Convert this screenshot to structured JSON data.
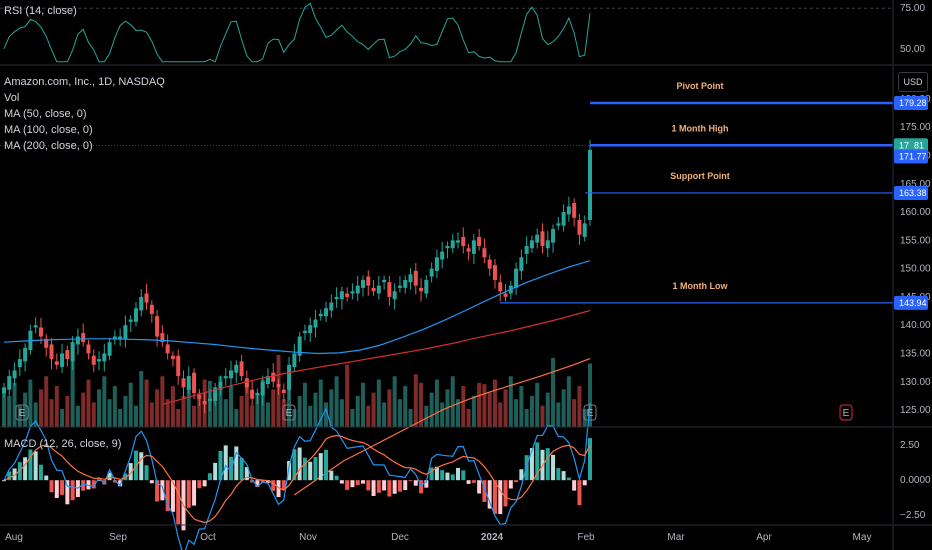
{
  "rsi": {
    "legend": "RSI (14, close)",
    "ticks": [
      75.0,
      50.0
    ],
    "tick_labels": [
      "75.00",
      "50.00"
    ]
  },
  "main": {
    "title": "Amazon.com, Inc., 1D, NASDAQ",
    "vol_label": "Vol",
    "ma_labels": [
      "MA (50, close, 0)",
      "MA (100, close, 0)",
      "MA (200, close, 0)"
    ],
    "currency": "USD"
  },
  "macd": {
    "legend": "MACD (12, 26, close, 9)",
    "tick_labels": [
      "2.50",
      "0.0000",
      "−2.50"
    ]
  },
  "xaxis": {
    "labels": [
      "Aug",
      "Sep",
      "Oct",
      "Nov",
      "Dec",
      "2024",
      "Feb",
      "Mar",
      "Apr",
      "May"
    ]
  },
  "annotations": [
    {
      "text": "Pivot Point",
      "value": 179.28
    },
    {
      "text": "1 Month High",
      "value": 171.81
    },
    {
      "text": "Support Point",
      "value": 163.38
    },
    {
      "text": "1 Month Low",
      "value": 143.94
    }
  ],
  "price_tags": [
    {
      "text": "179.28",
      "value": 179.28,
      "color": "#2962ff"
    },
    {
      "text": "17  81",
      "value": 171.81,
      "color": "#26a69a"
    },
    {
      "text": "171.77",
      "value": 171.77,
      "color": "#2962ff"
    },
    {
      "text": "163.38",
      "value": 163.38,
      "color": "#2962ff"
    },
    {
      "text": "143.94",
      "value": 143.94,
      "color": "#2962ff"
    }
  ],
  "earnings_markers": [
    "E",
    "E",
    "E",
    "E"
  ],
  "colors": {
    "up": "#26a69a",
    "down": "#ef5350",
    "ma50": "#2196f3",
    "ma100": "#d32f2f",
    "ma200": "#ff7043",
    "line": "#2962ff",
    "macd": "#2196f3",
    "signal": "#ff7043",
    "rsi": "#26a69a"
  },
  "chart_data": {
    "type": "candlestick",
    "title": "Amazon.com, Inc., 1D, NASDAQ",
    "yaxis_ticks": [
      125,
      130,
      135,
      140,
      145,
      150,
      155,
      160,
      165,
      170,
      175,
      180
    ],
    "ylim": [
      122,
      186
    ],
    "x_months": [
      "Aug",
      "Sep",
      "Oct",
      "Nov",
      "Dec",
      "2024",
      "Feb",
      "Mar",
      "Apr",
      "May"
    ],
    "closes": [
      129,
      131,
      132,
      134,
      136,
      139,
      140,
      138,
      136,
      134,
      133,
      135,
      134,
      137,
      138,
      137,
      135,
      133,
      134,
      135,
      137,
      138,
      138,
      140,
      141,
      143,
      145,
      144,
      142,
      138,
      137,
      135,
      134,
      131,
      129,
      131,
      128,
      127,
      126,
      127,
      129,
      130,
      131,
      132,
      133,
      131,
      129,
      127,
      128,
      130,
      131,
      130,
      129,
      128,
      133,
      135,
      138,
      139,
      140,
      141,
      142,
      143,
      144,
      145,
      146,
      145,
      146,
      147,
      148,
      147,
      146,
      147,
      148,
      145,
      146,
      147,
      148,
      149,
      147,
      146,
      148,
      150,
      152,
      153,
      154,
      155,
      155,
      154,
      153,
      155,
      154,
      152,
      150,
      148,
      146,
      145,
      147,
      150,
      152,
      154,
      155,
      156,
      154,
      155,
      157,
      158,
      160,
      161,
      159,
      156,
      158,
      171
    ],
    "ma50": [
      137,
      137.2,
      137.4,
      137.5,
      137.6,
      137.6,
      137.5,
      137.4,
      137.2,
      136.9,
      136.6,
      136.2,
      135.8,
      135.5,
      135.2,
      135,
      135.1,
      135.6,
      136.5,
      137.8,
      139.2,
      140.8,
      142.5,
      144.3,
      146,
      147.6,
      149,
      150.3,
      151.4
    ],
    "ma100": [
      126,
      126.8,
      127.6,
      128.4,
      129.2,
      129.9,
      130.6,
      131.2,
      131.8,
      132.3,
      132.8,
      133.3,
      133.8,
      134.3,
      134.8,
      135.3,
      135.8,
      136.4,
      137,
      137.7,
      138.3,
      138.9,
      139.6,
      140.3,
      141,
      141.8,
      142.6
    ],
    "ma200": [
      110,
      112,
      114,
      116,
      117.5,
      119,
      120.5,
      122,
      123.5,
      125,
      126.2,
      127.3,
      128.3,
      129.2,
      130.1,
      131,
      132,
      133,
      134.1
    ],
    "volume_scale": "relative",
    "levels": [
      {
        "name": "Pivot Point",
        "value": 179.28
      },
      {
        "name": "1 Month High",
        "value": 171.81
      },
      {
        "name": "Support Point",
        "value": 163.38
      },
      {
        "name": "1 Month Low",
        "value": 143.94
      }
    ],
    "rsi": {
      "ylim": [
        40,
        80
      ],
      "ticks": [
        75,
        50
      ]
    },
    "macd": {
      "ylim": [
        -3.2,
        3.8
      ],
      "ticks": [
        2.5,
        0,
        -2.5
      ]
    }
  }
}
